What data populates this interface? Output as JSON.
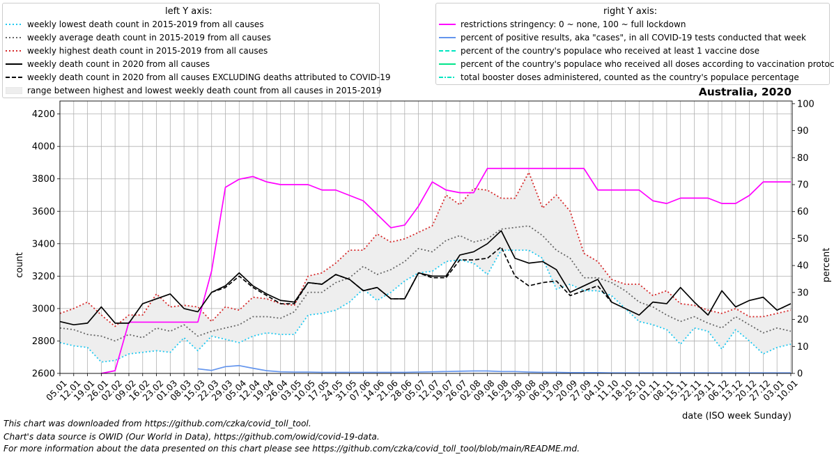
{
  "chart_data": {
    "type": "line",
    "title": "Australia, 2020",
    "xlabel": "date (ISO week Sunday)",
    "ylabel_left": "count",
    "ylabel_right": "percent",
    "ylim_left": [
      2600,
      4280
    ],
    "ylim_right": [
      0,
      101
    ],
    "yticks_left": [
      2600,
      2800,
      3000,
      3200,
      3400,
      3600,
      3800,
      4000,
      4200
    ],
    "yticks_right": [
      0,
      10,
      20,
      30,
      40,
      50,
      60,
      70,
      80,
      90,
      100
    ],
    "grid": true,
    "categories": [
      "05.01",
      "12.01",
      "19.01",
      "26.01",
      "02.02",
      "09.02",
      "16.02",
      "23.02",
      "01.03",
      "08.03",
      "15.03",
      "22.03",
      "29.03",
      "05.04",
      "12.04",
      "19.04",
      "26.04",
      "03.05",
      "10.05",
      "17.05",
      "24.05",
      "31.05",
      "07.06",
      "14.06",
      "21.06",
      "28.06",
      "05.07",
      "12.07",
      "19.07",
      "26.07",
      "02.08",
      "09.08",
      "16.08",
      "23.08",
      "30.08",
      "06.09",
      "13.09",
      "20.09",
      "27.09",
      "04.10",
      "11.10",
      "18.10",
      "25.10",
      "01.11",
      "08.11",
      "15.11",
      "22.11",
      "29.11",
      "06.12",
      "13.12",
      "20.12",
      "27.12",
      "03.01",
      "10.01"
    ],
    "left_series": [
      {
        "name": "weekly lowest death count in 2015-2019 from all causes",
        "color": "#1ec8f0",
        "dash": "dotted",
        "values": [
          2790,
          2770,
          2760,
          2670,
          2680,
          2720,
          2730,
          2740,
          2730,
          2820,
          2740,
          2830,
          2810,
          2790,
          2830,
          2850,
          2840,
          2840,
          2960,
          2970,
          2990,
          3040,
          3120,
          3050,
          3100,
          3170,
          3220,
          3230,
          3290,
          3300,
          3280,
          3210,
          3360,
          3360,
          3360,
          3310,
          3120,
          3150,
          3110,
          3110,
          3080,
          3000,
          2920,
          2900,
          2870,
          2780,
          2880,
          2860,
          2750,
          2870,
          2800,
          2720,
          2760,
          2780
        ]
      },
      {
        "name": "weekly average death count in 2015-2019 from all causes",
        "color": "#666666",
        "dash": "dotted",
        "values": [
          2880,
          2870,
          2840,
          2830,
          2800,
          2840,
          2820,
          2880,
          2860,
          2900,
          2830,
          2860,
          2880,
          2900,
          2950,
          2950,
          2940,
          2980,
          3100,
          3100,
          3160,
          3190,
          3260,
          3210,
          3240,
          3290,
          3370,
          3350,
          3420,
          3450,
          3410,
          3430,
          3490,
          3500,
          3510,
          3450,
          3360,
          3310,
          3190,
          3190,
          3160,
          3110,
          3040,
          3010,
          2960,
          2920,
          2950,
          2910,
          2880,
          2950,
          2900,
          2850,
          2880,
          2860
        ]
      },
      {
        "name": "weekly highest death count in 2015-2019 from all causes",
        "color": "#d62728",
        "dash": "dotted",
        "values": [
          2970,
          3000,
          3040,
          2960,
          2890,
          2960,
          2960,
          3090,
          3010,
          3020,
          3010,
          2920,
          3010,
          2990,
          3070,
          3060,
          3030,
          3020,
          3200,
          3220,
          3280,
          3360,
          3360,
          3460,
          3410,
          3430,
          3470,
          3510,
          3700,
          3640,
          3740,
          3730,
          3680,
          3680,
          3840,
          3620,
          3700,
          3600,
          3340,
          3290,
          3180,
          3150,
          3150,
          3080,
          3110,
          3030,
          3020,
          2990,
          2970,
          3000,
          2950,
          2950,
          2970,
          2990
        ]
      },
      {
        "name": "weekly death count in 2020 from all causes",
        "color": "#000000",
        "dash": "solid",
        "values": [
          2920,
          2900,
          2910,
          3010,
          2910,
          2910,
          3030,
          3060,
          3090,
          3000,
          2980,
          3100,
          3140,
          3220,
          3140,
          3090,
          3050,
          3040,
          3160,
          3150,
          3210,
          3180,
          3110,
          3130,
          3060,
          3060,
          3220,
          3200,
          3200,
          3330,
          3350,
          3400,
          3480,
          3310,
          3280,
          3290,
          3240,
          3100,
          3140,
          3180,
          3040,
          3000,
          2960,
          3040,
          3030,
          3130,
          3040,
          2960,
          3110,
          3010,
          3050,
          3070,
          2990,
          3030
        ]
      },
      {
        "name": "weekly death count in 2020 from all causes EXCLUDING deaths attributed to COVID-19",
        "color": "#000000",
        "dash": "dashed",
        "values": [
          null,
          null,
          null,
          null,
          null,
          null,
          null,
          null,
          null,
          null,
          null,
          3100,
          3130,
          3200,
          3130,
          3080,
          3030,
          3030,
          3160,
          3150,
          3210,
          3180,
          3110,
          3130,
          3060,
          3060,
          3220,
          3190,
          3190,
          3300,
          3300,
          3310,
          3380,
          3200,
          3140,
          3160,
          3170,
          3080,
          3110,
          3140,
          3040,
          null,
          null,
          null,
          null,
          null,
          null,
          null,
          null,
          null,
          null,
          null,
          null,
          null
        ]
      }
    ],
    "range_fill": {
      "name": "range between highest and lowest weekly death count from all causes in 2015-2019",
      "color": "#eeeeee"
    },
    "right_series": [
      {
        "name": "restrictions stringency: 0 ~ none, 100 ~ full lockdown",
        "color": "#ff00ff",
        "dash": "solid",
        "values": [
          null,
          null,
          null,
          0,
          1,
          19,
          19,
          19,
          19,
          19,
          19,
          38,
          69,
          72,
          73,
          71,
          70,
          70,
          70,
          68,
          68,
          66,
          64,
          59,
          54,
          55,
          62,
          71,
          68,
          67,
          67,
          76,
          76,
          76,
          76,
          76,
          76,
          76,
          76,
          68,
          68,
          68,
          68,
          64,
          63,
          65,
          65,
          65,
          63,
          63,
          66,
          71,
          71,
          71
        ]
      },
      {
        "name": "percent of positive results, aka \"cases\", in all COVID-19 tests conducted that week",
        "color": "#6495ed",
        "dash": "solid",
        "values": [
          null,
          null,
          null,
          null,
          null,
          null,
          null,
          null,
          null,
          null,
          1.7,
          1.1,
          2.5,
          2.9,
          1.9,
          1.0,
          0.6,
          0.5,
          0.5,
          0.4,
          0.4,
          0.4,
          0.4,
          0.4,
          0.4,
          0.4,
          0.5,
          0.6,
          0.7,
          0.8,
          0.9,
          0.9,
          0.7,
          0.7,
          0.5,
          0.4,
          0.4,
          0.3,
          0.3,
          0.3,
          0.2,
          0.2,
          0.2,
          0.2,
          0.2,
          0.2,
          0.2,
          0.2,
          0.2,
          0.2,
          0.2,
          0.2,
          0.2,
          0.2
        ]
      },
      {
        "name": "percent of the country's populace who received at least 1 vaccine dose",
        "color": "#00e5c0",
        "dash": "dashed",
        "values": []
      },
      {
        "name": "percent of the country's populace who received all doses according to vaccination protocol",
        "color": "#00e58a",
        "dash": "solid",
        "values": []
      },
      {
        "name": "total booster doses administered, counted as the country's populace percentage",
        "color": "#00e5c0",
        "dash": "dashdot",
        "values": []
      }
    ],
    "legend_left_title": "left Y axis:",
    "legend_right_title": "right Y axis:"
  },
  "footer": [
    "This chart was downloaded from https://github.com/czka/covid_toll_tool.",
    "Chart's data source is OWID (Our World in Data), https://github.com/owid/covid-19-data.",
    "For more information about the data presented on this chart please see https://github.com/czka/covid_toll_tool/blob/main/README.md."
  ]
}
